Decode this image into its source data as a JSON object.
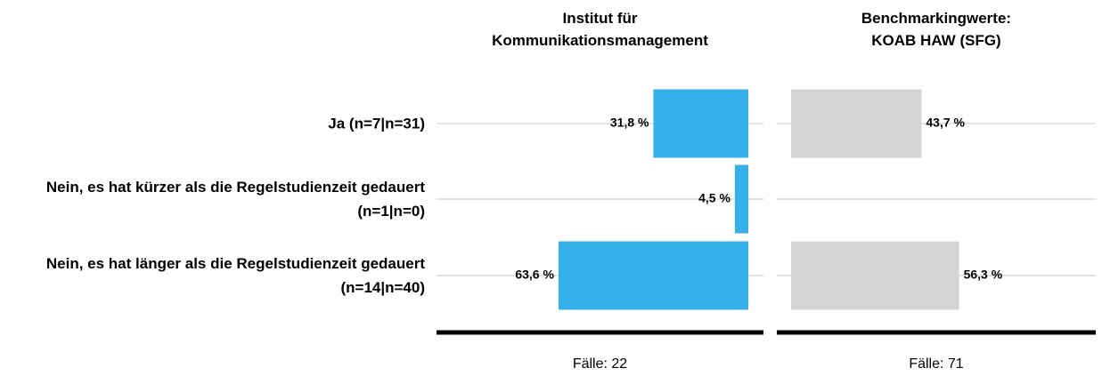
{
  "chart_data": {
    "type": "bar",
    "categories": [
      "Ja (n=7|n=31)",
      "Nein, es hat kürzer als die Regelstudienzeit gedauert (n=1|n=0)",
      "Nein, es hat länger als die Regelstudienzeit gedauert (n=14|n=40)"
    ],
    "series": [
      {
        "name": "Institut für Kommunikationsmanagement",
        "color": "#35b0e8",
        "values": [
          31.8,
          4.5,
          63.6
        ],
        "value_labels": [
          "31,8 %",
          "4,5 %",
          "63,6 %"
        ],
        "footer": "Fälle: 22"
      },
      {
        "name": "Benchmarkingwerte: KOAB HAW (SFG)",
        "color": "#d4d4d4",
        "values": [
          43.7,
          null,
          56.3
        ],
        "value_labels": [
          "43,7 %",
          null,
          "56,3 %"
        ],
        "footer": "Fälle: 71"
      }
    ]
  }
}
